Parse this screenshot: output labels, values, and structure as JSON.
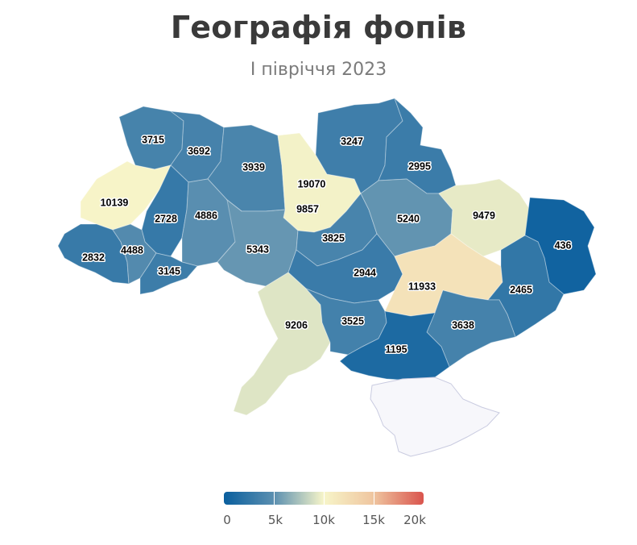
{
  "header": {
    "title": "Географія фопів",
    "subtitle": "І півріччя 2023"
  },
  "scale": {
    "min": 0,
    "max": 20000,
    "colors": [
      "#0a5f9e",
      "#5b8fb0",
      "#f7f5c9",
      "#efc59f",
      "#d9544d"
    ],
    "no_data_color": "#f7f7fb",
    "tick_labels": [
      "0",
      "5k",
      "10k",
      "15k",
      "20k"
    ]
  },
  "regions": [
    {
      "id": "volyn",
      "value": 3715
    },
    {
      "id": "rivne",
      "value": 3692
    },
    {
      "id": "zhytomyr",
      "value": 3939
    },
    {
      "id": "kyiv-city",
      "value": 19070
    },
    {
      "id": "kyiv-oblast",
      "value": 9857
    },
    {
      "id": "chernihiv",
      "value": 3247
    },
    {
      "id": "sumy",
      "value": 2995
    },
    {
      "id": "lviv",
      "value": 10139
    },
    {
      "id": "ternopil",
      "value": 2728
    },
    {
      "id": "khmelnytskyi",
      "value": 4886
    },
    {
      "id": "vinnytsia",
      "value": 5343
    },
    {
      "id": "cherkasy",
      "value": 3825
    },
    {
      "id": "poltava",
      "value": 5240
    },
    {
      "id": "kharkiv",
      "value": 9479
    },
    {
      "id": "luhansk",
      "value": 436
    },
    {
      "id": "zakarpattia",
      "value": 2832
    },
    {
      "id": "ivano-frankivsk",
      "value": 4488
    },
    {
      "id": "chernivtsi",
      "value": 3145
    },
    {
      "id": "kirovohrad",
      "value": 2944
    },
    {
      "id": "dnipropetrovsk",
      "value": 11933
    },
    {
      "id": "donetsk",
      "value": 2465
    },
    {
      "id": "odesa",
      "value": 9206
    },
    {
      "id": "mykolaiv",
      "value": 3525
    },
    {
      "id": "zaporizhzhia",
      "value": 3638
    },
    {
      "id": "kherson",
      "value": 1195
    },
    {
      "id": "crimea",
      "value": null
    }
  ]
}
